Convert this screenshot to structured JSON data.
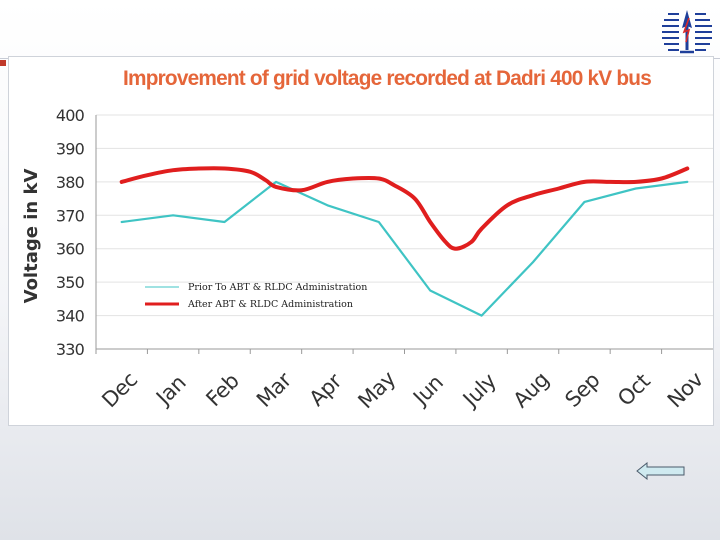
{
  "chart_data": {
    "type": "line",
    "title": "Improvement of grid voltage recorded at Dadri 400 kV bus",
    "xlabel": "",
    "ylabel": "Voltage in kV",
    "categories": [
      "Dec",
      "Jan",
      "Feb",
      "Mar",
      "Apr",
      "May",
      "Jun",
      "July",
      "Aug",
      "Sep",
      "Oct",
      "Nov"
    ],
    "ylim": [
      330,
      400
    ],
    "yticks": [
      "330",
      "340",
      "350",
      "360",
      "370",
      "380",
      "390",
      "400"
    ],
    "series": [
      {
        "name": "Prior To ABT & RLDC Administration",
        "color": "#3fc4c4",
        "x": [
          0,
          1,
          2,
          3,
          4,
          5,
          6,
          7,
          8,
          9,
          10,
          11
        ],
        "values": [
          368,
          370,
          368,
          380,
          373,
          368,
          347.5,
          340,
          356,
          374,
          378,
          380
        ]
      },
      {
        "name": "After ABT & RLDC Administration",
        "color": "#e01e1e",
        "x": [
          0,
          0.5,
          1,
          1.5,
          2,
          2.5,
          2.8,
          3,
          3.5,
          4,
          4.5,
          5,
          5.3,
          5.7,
          6,
          6.3,
          6.5,
          6.8,
          7,
          7.5,
          8,
          8.5,
          9,
          9.5,
          10,
          10.5,
          11
        ],
        "values": [
          380,
          382,
          383.5,
          384,
          384,
          383,
          380.5,
          378.5,
          377.5,
          380,
          381,
          381,
          379,
          375,
          368,
          362,
          360,
          362,
          366,
          373,
          376,
          378,
          380,
          380,
          380,
          381,
          384
        ]
      }
    ]
  }
}
